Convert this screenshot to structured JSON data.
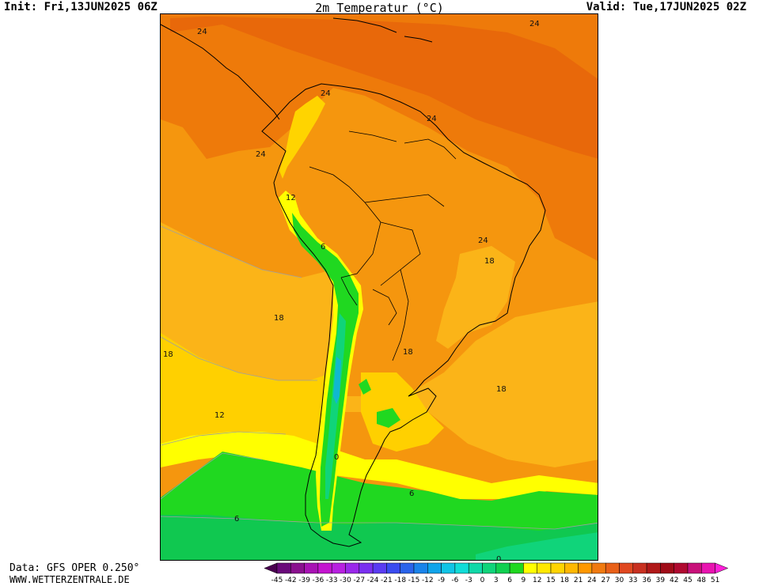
{
  "header": {
    "init": "Init: Fri,13JUN2025 06Z",
    "title": "2m Temperatur (°C)",
    "valid": "Valid: Tue,17JUN2025 02Z"
  },
  "footer": {
    "data_source": "Data: GFS OPER 0.250°",
    "website": "WWW.WETTERZENTRALE.DE"
  },
  "map": {
    "region": "South America",
    "contour_labels": [
      "24",
      "24",
      "24",
      "24",
      "24",
      "12",
      "6",
      "18",
      "18",
      "18",
      "18",
      "24",
      "18",
      "12",
      "0",
      "6",
      "6",
      "0"
    ]
  },
  "legend": {
    "ticks": [
      "-45",
      "-42",
      "-39",
      "-36",
      "-33",
      "-30",
      "-27",
      "-24",
      "-21",
      "-18",
      "-15",
      "-12",
      "-9",
      "-6",
      "-3",
      "0",
      "3",
      "6",
      "9",
      "12",
      "15",
      "18",
      "21",
      "24",
      "27",
      "30",
      "33",
      "36",
      "39",
      "42",
      "45",
      "48",
      "51"
    ],
    "colors": [
      "#4a0050",
      "#6a0a7a",
      "#8a108e",
      "#a812b4",
      "#c414d0",
      "#b820e0",
      "#9a28ea",
      "#7a30f0",
      "#5a3cf2",
      "#3a4cf0",
      "#2a64ea",
      "#1a84ea",
      "#10a4ea",
      "#10c4e6",
      "#10dcd8",
      "#10d8a8",
      "#10d47a",
      "#10d050",
      "#20d820",
      "#ffff00",
      "#ffe800",
      "#ffd400",
      "#ffb800",
      "#ff9800",
      "#f07a10",
      "#e86018",
      "#e04820",
      "#c83020",
      "#b01818",
      "#a00c18",
      "#b00a30",
      "#c8107a",
      "#e814b0",
      "#ff20d8"
    ]
  }
}
